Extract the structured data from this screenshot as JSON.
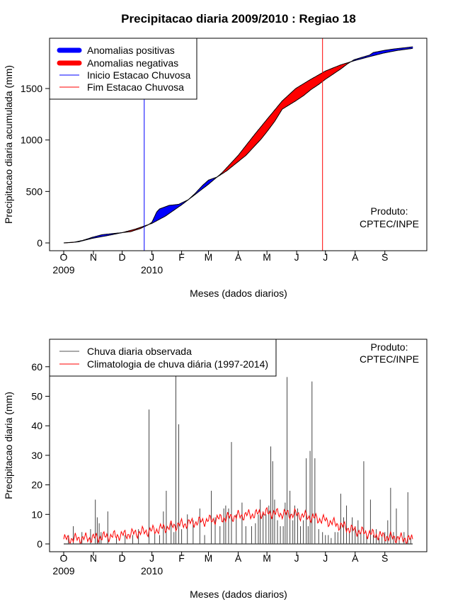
{
  "title": "Precipitacao diaria 2009/2010 : Regiao 18",
  "chart_data": [
    {
      "type": "area",
      "name": "accumulated",
      "ylabel": "Precipitacao diaria acumulada (mm)",
      "xlabel": "Meses (dados diarios)",
      "ylim": [
        0,
        1900
      ],
      "yticks": [
        0,
        500,
        1000,
        1500
      ],
      "month_labels": [
        "O",
        "N",
        "D",
        "J",
        "F",
        "M",
        "A",
        "M",
        "J",
        "J",
        "A",
        "S"
      ],
      "year_labels": [
        {
          "month_index": 0,
          "text": "2009"
        },
        {
          "month_index": 3,
          "text": "2010"
        }
      ],
      "legend": [
        {
          "label": "Anomalias positivas",
          "color": "#0000ff"
        },
        {
          "label": "Anomalias negativas",
          "color": "#ff0000"
        },
        {
          "label": "Inicio Estacao Chuvosa",
          "color": "#0000ff"
        },
        {
          "label": "Fim Estacao Chuvosa",
          "color": "#ff0000"
        }
      ],
      "credit": [
        "Produto:",
        "CPTEC/INPE"
      ],
      "rainy_season_start_day": 84,
      "rainy_season_end_day": 270,
      "climatology_points": [
        [
          0,
          0
        ],
        [
          15,
          10
        ],
        [
          30,
          45
        ],
        [
          45,
          70
        ],
        [
          61,
          100
        ],
        [
          75,
          135
        ],
        [
          92,
          190
        ],
        [
          106,
          260
        ],
        [
          123,
          370
        ],
        [
          137,
          470
        ],
        [
          151,
          570
        ],
        [
          165,
          680
        ],
        [
          182,
          850
        ],
        [
          198,
          1040
        ],
        [
          212,
          1200
        ],
        [
          228,
          1380
        ],
        [
          242,
          1500
        ],
        [
          256,
          1580
        ],
        [
          273,
          1670
        ],
        [
          289,
          1730
        ],
        [
          303,
          1770
        ],
        [
          319,
          1810
        ],
        [
          334,
          1845
        ],
        [
          348,
          1870
        ],
        [
          364,
          1890
        ]
      ],
      "observed_points": [
        [
          0,
          0
        ],
        [
          10,
          5
        ],
        [
          20,
          25
        ],
        [
          30,
          55
        ],
        [
          40,
          80
        ],
        [
          50,
          90
        ],
        [
          61,
          100
        ],
        [
          70,
          110
        ],
        [
          80,
          140
        ],
        [
          88,
          175
        ],
        [
          92,
          200
        ],
        [
          95,
          260
        ],
        [
          97,
          300
        ],
        [
          100,
          330
        ],
        [
          110,
          365
        ],
        [
          120,
          375
        ],
        [
          130,
          420
        ],
        [
          137,
          480
        ],
        [
          145,
          560
        ],
        [
          151,
          610
        ],
        [
          160,
          640
        ],
        [
          170,
          700
        ],
        [
          182,
          790
        ],
        [
          190,
          850
        ],
        [
          198,
          930
        ],
        [
          206,
          1010
        ],
        [
          212,
          1080
        ],
        [
          220,
          1180
        ],
        [
          228,
          1300
        ],
        [
          235,
          1340
        ],
        [
          242,
          1380
        ],
        [
          250,
          1430
        ],
        [
          258,
          1490
        ],
        [
          266,
          1540
        ],
        [
          273,
          1590
        ],
        [
          281,
          1640
        ],
        [
          289,
          1690
        ],
        [
          296,
          1740
        ],
        [
          303,
          1780
        ],
        [
          310,
          1800
        ],
        [
          319,
          1825
        ],
        [
          323,
          1850
        ],
        [
          334,
          1870
        ],
        [
          345,
          1885
        ],
        [
          364,
          1905
        ]
      ]
    },
    {
      "type": "bar",
      "name": "daily",
      "ylabel": "Precipitacao diaria (mm)",
      "xlabel": "Meses (dados diarios)",
      "ylim": [
        0,
        68
      ],
      "yticks": [
        0,
        10,
        20,
        30,
        40,
        50,
        60
      ],
      "month_labels": [
        "O",
        "N",
        "D",
        "J",
        "F",
        "M",
        "A",
        "M",
        "J",
        "J",
        "A",
        "S"
      ],
      "year_labels": [
        {
          "month_index": 0,
          "text": "2009"
        },
        {
          "month_index": 3,
          "text": "2010"
        }
      ],
      "legend": [
        {
          "label": "Chuva diaria observada",
          "color": "#555555"
        },
        {
          "label": "Climatologia de chuva diária (1997-2014)",
          "color": "#ff0000"
        }
      ],
      "credit": [
        "Produto:",
        "CPTEC/INPE"
      ],
      "daily_peaks": [
        [
          5,
          3
        ],
        [
          10,
          6
        ],
        [
          19,
          4
        ],
        [
          28,
          5
        ],
        [
          33,
          15
        ],
        [
          35,
          9
        ],
        [
          37,
          7
        ],
        [
          39,
          4
        ],
        [
          46,
          11
        ],
        [
          55,
          2
        ],
        [
          64,
          3
        ],
        [
          72,
          3
        ],
        [
          78,
          5
        ],
        [
          89,
          45.5
        ],
        [
          95,
          4
        ],
        [
          100,
          3
        ],
        [
          104,
          11
        ],
        [
          107,
          18
        ],
        [
          112,
          7
        ],
        [
          115,
          4
        ],
        [
          117,
          62
        ],
        [
          120,
          40.5
        ],
        [
          123,
          5
        ],
        [
          129,
          10
        ],
        [
          135,
          8
        ],
        [
          142,
          12
        ],
        [
          147,
          3
        ],
        [
          154,
          18
        ],
        [
          158,
          9
        ],
        [
          163,
          6
        ],
        [
          167,
          12
        ],
        [
          169,
          13
        ],
        [
          172,
          12
        ],
        [
          175,
          34.5
        ],
        [
          180,
          10
        ],
        [
          186,
          14
        ],
        [
          190,
          6
        ],
        [
          196,
          6
        ],
        [
          200,
          7
        ],
        [
          203,
          10
        ],
        [
          205,
          15
        ],
        [
          208,
          11
        ],
        [
          211,
          10
        ],
        [
          214,
          13
        ],
        [
          216,
          33
        ],
        [
          218,
          28
        ],
        [
          220,
          15
        ],
        [
          223,
          8
        ],
        [
          226,
          6
        ],
        [
          229,
          6
        ],
        [
          231,
          14
        ],
        [
          233,
          56.5
        ],
        [
          236,
          18
        ],
        [
          239,
          8
        ],
        [
          241,
          13
        ],
        [
          244,
          12
        ],
        [
          247,
          6
        ],
        [
          250,
          8
        ],
        [
          253,
          29
        ],
        [
          255,
          6
        ],
        [
          257,
          31.5
        ],
        [
          259,
          55
        ],
        [
          262,
          29
        ],
        [
          266,
          5
        ],
        [
          270,
          4
        ],
        [
          273,
          3
        ],
        [
          276,
          3
        ],
        [
          279,
          2
        ],
        [
          283,
          4
        ],
        [
          286,
          4
        ],
        [
          289,
          17
        ],
        [
          292,
          9
        ],
        [
          295,
          13
        ],
        [
          298,
          4
        ],
        [
          301,
          9
        ],
        [
          304,
          6
        ],
        [
          307,
          8
        ],
        [
          310,
          4
        ],
        [
          313,
          28
        ],
        [
          316,
          3
        ],
        [
          320,
          15
        ],
        [
          323,
          3
        ],
        [
          326,
          5
        ],
        [
          329,
          2
        ],
        [
          332,
          3
        ],
        [
          335,
          4
        ],
        [
          338,
          8
        ],
        [
          341,
          19
        ],
        [
          344,
          4
        ],
        [
          347,
          12
        ],
        [
          350,
          2
        ],
        [
          355,
          4
        ],
        [
          359,
          17.5
        ],
        [
          362,
          2
        ]
      ],
      "climatology_points": [
        [
          0,
          1.6
        ],
        [
          30,
          2
        ],
        [
          61,
          3
        ],
        [
          92,
          4.5
        ],
        [
          120,
          6.5
        ],
        [
          151,
          8
        ],
        [
          182,
          9.5
        ],
        [
          212,
          10.5
        ],
        [
          243,
          10
        ],
        [
          273,
          8
        ],
        [
          304,
          4.5
        ],
        [
          334,
          2.5
        ],
        [
          364,
          1.5
        ]
      ]
    }
  ]
}
